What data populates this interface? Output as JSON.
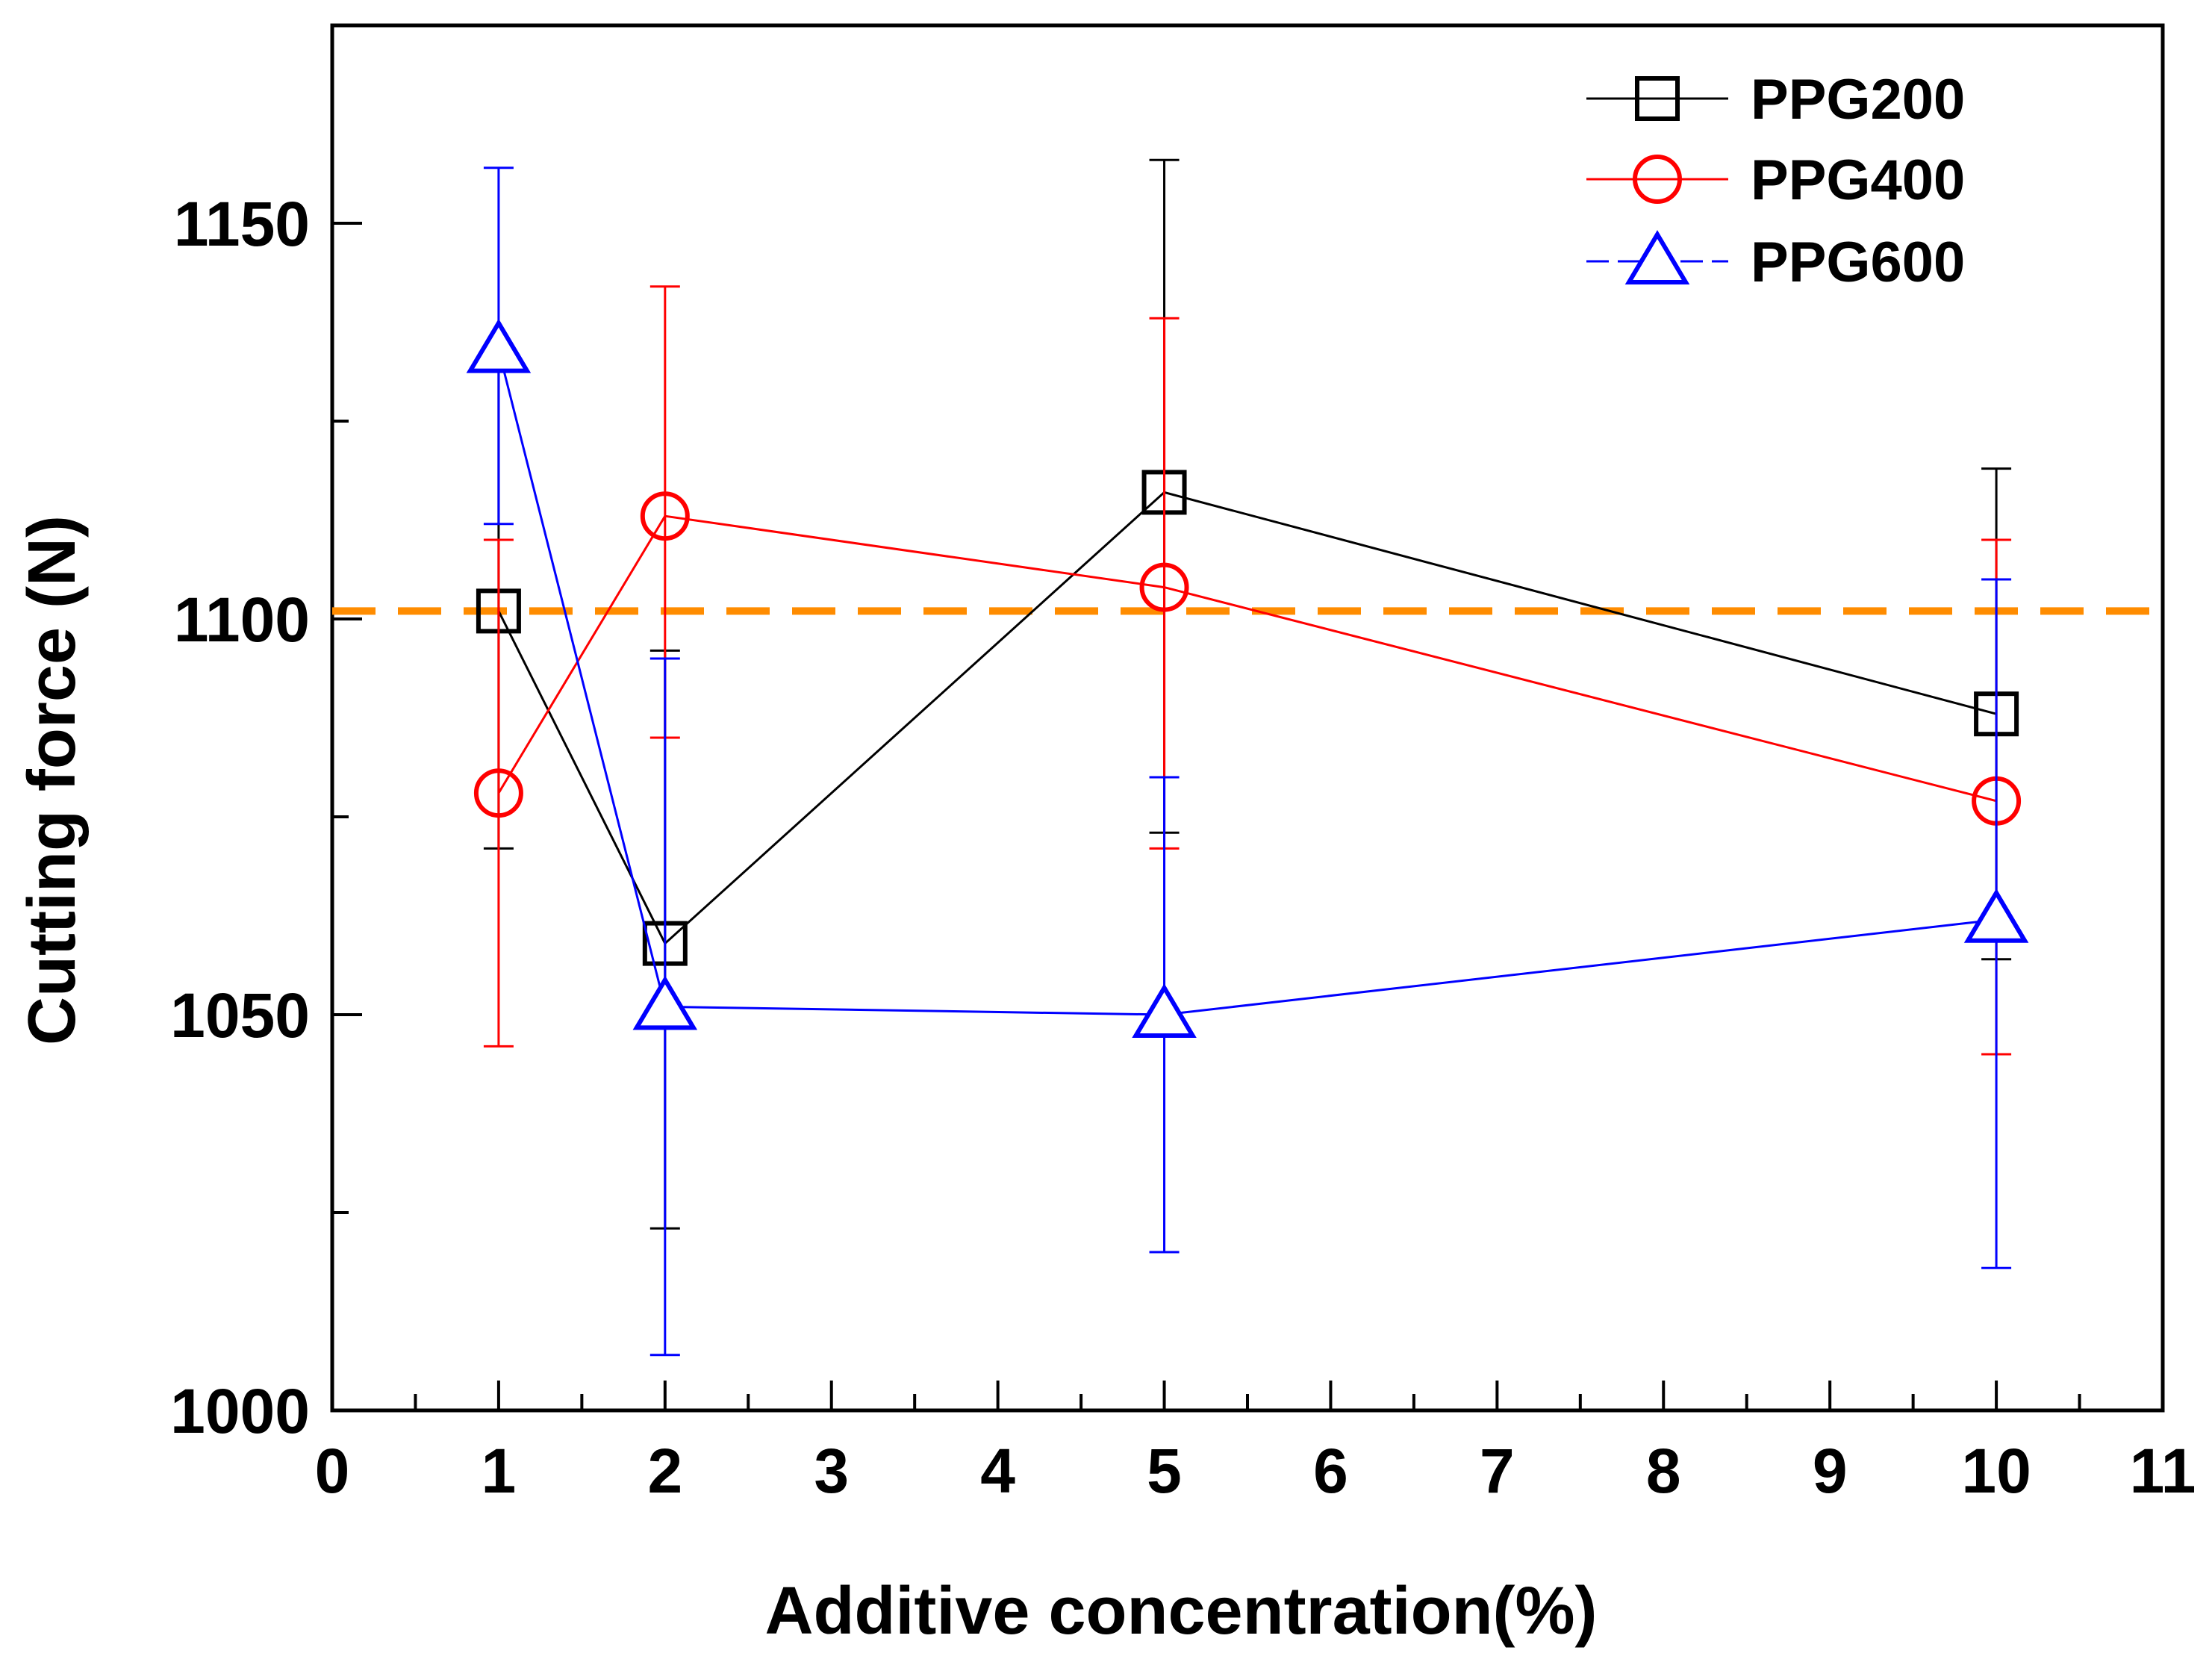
{
  "chart_data": {
    "type": "line",
    "title": "",
    "xlabel": "Additive concentration(%)",
    "ylabel": "Cutting force (N)",
    "xlim": [
      0,
      11
    ],
    "ylim": [
      1000,
      1175
    ],
    "x_ticks": [
      0,
      1,
      2,
      3,
      4,
      5,
      6,
      7,
      8,
      9,
      10,
      11
    ],
    "x_tick_labels": [
      "0",
      "1",
      "2",
      "3",
      "4",
      "5",
      "6",
      "7",
      "8",
      "9",
      "10",
      "11"
    ],
    "y_ticks": [
      1000,
      1050,
      1100,
      1150
    ],
    "y_tick_labels": [
      "1000",
      "1050",
      "1100",
      "1150"
    ],
    "y_minor_step": 25,
    "x_minor_step": 0.5,
    "legend_position": "top-right",
    "reference_line": {
      "y": 1101,
      "color": "#ff8c00",
      "style": "dashed"
    },
    "series": [
      {
        "name": "PPG200",
        "color": "#000000",
        "marker": "square",
        "x": [
          1,
          2,
          5,
          10
        ],
        "y": [
          1101,
          1059,
          1116,
          1088
        ],
        "err_low": [
          1071,
          1023,
          1073,
          1057
        ],
        "err_high": [
          1132,
          1096,
          1158,
          1119
        ]
      },
      {
        "name": "PPG400",
        "color": "#ff0000",
        "marker": "circle",
        "x": [
          1,
          2,
          5,
          10
        ],
        "y": [
          1078,
          1113,
          1104,
          1077
        ],
        "err_low": [
          1046,
          1085,
          1071,
          1045
        ],
        "err_high": [
          1110,
          1142,
          1138,
          1110
        ]
      },
      {
        "name": "PPG600",
        "color": "#0000ff",
        "marker": "triangle",
        "x": [
          1,
          2,
          5,
          10
        ],
        "y": [
          1134,
          1051,
          1050,
          1062
        ],
        "err_low": [
          1112,
          1007,
          1020,
          1018
        ],
        "err_high": [
          1157,
          1095,
          1080,
          1105
        ]
      }
    ]
  }
}
